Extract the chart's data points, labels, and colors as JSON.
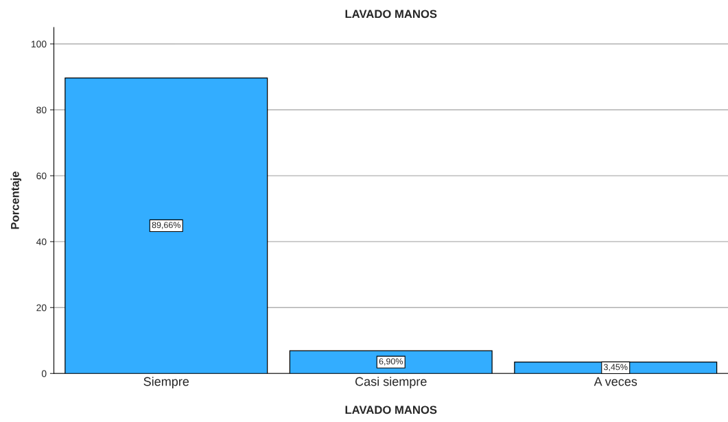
{
  "chart_data": {
    "type": "bar",
    "title": "LAVADO MANOS",
    "xlabel": "LAVADO MANOS",
    "ylabel": "Porcentaje",
    "categories": [
      "Siempre",
      "Casi siempre",
      "A veces"
    ],
    "values": [
      89.66,
      6.9,
      3.45
    ],
    "value_labels": [
      "89,66%",
      "6,90%",
      "3,45%"
    ],
    "color": "#33adff",
    "ylim": [
      0,
      105
    ],
    "yticks": [
      0,
      20,
      40,
      60,
      80,
      100
    ],
    "grid": "y",
    "legend": false
  }
}
